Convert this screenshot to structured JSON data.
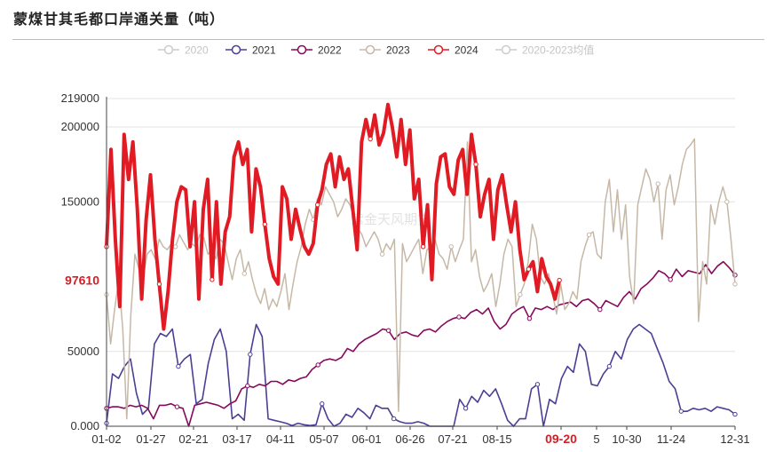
{
  "title": "蒙煤甘其毛都口岸通关量（吨）",
  "watermark": "紫金天风期货",
  "chart_data": {
    "type": "line",
    "x_ticks": [
      "01-02",
      "01-27",
      "02-21",
      "03-17",
      "04-11",
      "05-07",
      "06-01",
      "06-26",
      "07-21",
      "08-15",
      "09-20",
      "5",
      "10-30",
      "11-24",
      "12-31"
    ],
    "y_ticks": [
      0,
      50000,
      150000,
      200000,
      219000
    ],
    "y_tick_labels": [
      "0.000",
      "50000",
      "150000",
      "200000",
      "219000"
    ],
    "ylim": [
      0,
      219000
    ],
    "highlight_x_label": "09-20",
    "highlight_y_label": "97610",
    "highlight_y_value": 97610,
    "series": [
      {
        "name": "2020",
        "color": "#cfc5b8",
        "width": 1.5,
        "hidden": true,
        "values": []
      },
      {
        "name": "2021",
        "color": "#4b3f95",
        "width": 1.6,
        "values": [
          2000,
          35000,
          32000,
          40000,
          45000,
          22000,
          8000,
          12000,
          55000,
          62000,
          60000,
          65000,
          40000,
          45000,
          48000,
          15000,
          18000,
          42000,
          58000,
          65000,
          50000,
          5000,
          8000,
          4000,
          48000,
          68000,
          60000,
          5000,
          4000,
          3000,
          2000,
          500,
          2000,
          1000,
          500,
          1000,
          15000,
          5000,
          0,
          2000,
          8000,
          6000,
          12000,
          9000,
          5000,
          14000,
          12000,
          12000,
          5000,
          3000,
          2000,
          2000,
          3000,
          2000,
          0,
          0,
          0,
          0,
          0,
          18000,
          12000,
          20000,
          16000,
          24000,
          20000,
          25000,
          15000,
          4000,
          0,
          5000,
          5000,
          25000,
          28000,
          0,
          18000,
          15000,
          32000,
          40000,
          36000,
          55000,
          50000,
          28000,
          27000,
          35000,
          40000,
          50000,
          45000,
          58000,
          65000,
          68000,
          65000,
          62000,
          52000,
          42000,
          30000,
          25000,
          10000,
          10000,
          12000,
          11000,
          12000,
          10000,
          13000,
          12000,
          11000,
          8000
        ]
      },
      {
        "name": "2022",
        "color": "#860a5c",
        "width": 1.6,
        "values": [
          12000,
          13000,
          13000,
          12000,
          14000,
          13000,
          14000,
          12000,
          5000,
          14000,
          14000,
          15000,
          13000,
          12000,
          0,
          14000,
          15000,
          16000,
          15000,
          14000,
          12000,
          15000,
          17000,
          25000,
          27000,
          26000,
          28000,
          27000,
          30000,
          30000,
          28000,
          31000,
          30000,
          32000,
          33000,
          38000,
          41000,
          44000,
          45000,
          44000,
          46000,
          52000,
          50000,
          55000,
          58000,
          60000,
          62000,
          65000,
          64000,
          58000,
          62000,
          63000,
          61000,
          60000,
          64000,
          65000,
          63000,
          67000,
          70000,
          72000,
          73000,
          72000,
          76000,
          78000,
          75000,
          79000,
          70000,
          65000,
          68000,
          75000,
          78000,
          80000,
          72000,
          79000,
          78000,
          80000,
          78000,
          81000,
          82000,
          83000,
          80000,
          84000,
          85000,
          82000,
          78000,
          84000,
          82000,
          80000,
          86000,
          90000,
          85000,
          92000,
          95000,
          99000,
          104000,
          102000,
          98000,
          105000,
          100000,
          104000,
          103000,
          102000,
          108000,
          102000,
          107000,
          110000,
          106000,
          101000
        ]
      },
      {
        "name": "2023",
        "color": "#c6b8a7",
        "width": 1.5,
        "values": [
          88000,
          55000,
          78000,
          98000,
          65000,
          5000,
          75000,
          115000,
          105000,
          98000,
          115000,
          118000,
          112000,
          125000,
          120000,
          118000,
          122000,
          120000,
          128000,
          123000,
          118000,
          122000,
          120000,
          128000,
          126000,
          115000,
          118000,
          112000,
          125000,
          122000,
          110000,
          98000,
          112000,
          118000,
          102000,
          110000,
          98000,
          88000,
          82000,
          92000,
          78000,
          85000,
          80000,
          90000,
          102000,
          78000,
          95000,
          110000,
          120000,
          135000,
          145000,
          138000,
          152000,
          148000,
          160000,
          155000,
          150000,
          140000,
          145000,
          152000,
          148000,
          140000,
          132000,
          128000,
          120000,
          125000,
          130000,
          125000,
          115000,
          122000,
          118000,
          125000,
          10000,
          122000,
          110000,
          115000,
          120000,
          125000,
          102000,
          118000,
          120000,
          125000,
          115000,
          112000,
          105000,
          120000,
          110000,
          118000,
          125000,
          190000,
          110000,
          118000,
          100000,
          90000,
          95000,
          102000,
          80000,
          95000,
          115000,
          125000,
          120000,
          80000,
          88000,
          95000,
          110000,
          135000,
          125000,
          100000,
          95000,
          102000,
          88000,
          75000,
          95000,
          78000,
          82000,
          90000,
          85000,
          110000,
          120000,
          128000,
          130000,
          115000,
          112000,
          150000,
          165000,
          130000,
          158000,
          125000,
          148000,
          100000,
          82000,
          148000,
          160000,
          172000,
          165000,
          150000,
          162000,
          125000,
          158000,
          168000,
          148000,
          160000,
          175000,
          185000,
          188000,
          192000,
          70000,
          110000,
          95000,
          148000,
          135000,
          150000,
          160000,
          150000,
          125000,
          95000
        ]
      },
      {
        "name": "2024",
        "color": "#e01b24",
        "width": 4,
        "values": [
          120000,
          185000,
          125000,
          80000,
          195000,
          165000,
          190000,
          145000,
          85000,
          138000,
          168000,
          125000,
          95000,
          65000,
          90000,
          125000,
          150000,
          160000,
          158000,
          120000,
          150000,
          85000,
          145000,
          165000,
          98000,
          150000,
          95000,
          130000,
          140000,
          180000,
          190000,
          175000,
          185000,
          130000,
          172000,
          160000,
          135000,
          112000,
          100000,
          95000,
          160000,
          152000,
          125000,
          145000,
          132000,
          120000,
          115000,
          122000,
          148000,
          158000,
          175000,
          182000,
          160000,
          180000,
          165000,
          172000,
          145000,
          118000,
          190000,
          205000,
          192000,
          208000,
          188000,
          196000,
          215000,
          200000,
          180000,
          205000,
          175000,
          198000,
          152000,
          165000,
          120000,
          148000,
          98000,
          162000,
          180000,
          182000,
          160000,
          155000,
          178000,
          185000,
          155000,
          195000,
          175000,
          140000,
          155000,
          165000,
          125000,
          158000,
          168000,
          148000,
          130000,
          150000,
          118000,
          98000,
          105000,
          110000,
          90000,
          112000,
          100000,
          95000,
          85000,
          97610
        ]
      },
      {
        "name": "2020-2023均值",
        "color": "#cfc5b8",
        "width": 1.5,
        "hidden": true,
        "values": []
      }
    ]
  }
}
